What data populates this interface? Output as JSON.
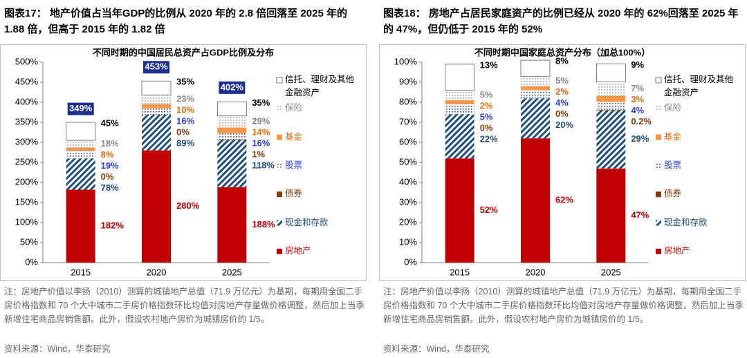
{
  "chart_data": [
    {
      "type": "stacked_bar",
      "figure_title": "图表17：  地产价值占当年GDP的比例从 2020 年的 2.8 倍回落至 2025 年的 1.88 倍，但高于 2015 年的 1.82 倍",
      "title": "不同时期的中国居民总资产占GDP比例及分布",
      "categories": [
        "2015",
        "2020",
        "2025"
      ],
      "series": [
        {
          "name": "房地产",
          "color": "#c00000",
          "pattern": "solid",
          "label_color": "#c00000",
          "values": [
            182,
            280,
            188
          ],
          "value_labels": [
            "182%",
            "280%",
            "188%"
          ]
        },
        {
          "name": "现金和存款",
          "color": "#1f4e79",
          "pattern": "hatch",
          "label_color": "#1f4e79",
          "values": [
            78,
            89,
            118
          ],
          "value_labels": [
            "78%",
            "89%",
            "118%"
          ]
        },
        {
          "name": "债券",
          "color": "#843c0c",
          "pattern": "solid",
          "label_color": "#843c0c",
          "values": [
            0,
            0,
            1
          ],
          "value_labels": [
            "0%",
            "0%",
            "1%"
          ]
        },
        {
          "name": "股票",
          "color": "#2f3fe0",
          "pattern": "dots",
          "label_color": "#2f3fe0",
          "values": [
            19,
            16,
            16
          ],
          "value_labels": [
            "19%",
            "16%",
            "16%"
          ]
        },
        {
          "name": "基金",
          "color": "#f79646",
          "pattern": "solid",
          "label_color": "#e46c0a",
          "values": [
            8,
            10,
            14
          ],
          "value_labels": [
            "8%",
            "10%",
            "14%"
          ]
        },
        {
          "name": "保险",
          "color": "#9a9a9a",
          "pattern": "dots",
          "label_color": "#8a8a8a",
          "values": [
            18,
            23,
            29
          ],
          "value_labels": [
            "18%",
            "23%",
            "29%"
          ]
        },
        {
          "name": "信托、理财及其他金融资产",
          "color": "#ffffff",
          "pattern": "solid",
          "label_color": "#000000",
          "values": [
            45,
            35,
            35
          ],
          "value_labels": [
            "45%",
            "35%",
            "35%"
          ]
        }
      ],
      "totals": [
        349,
        453,
        402
      ],
      "total_labels": [
        "349%",
        "453%",
        "402%"
      ],
      "ylim": [
        0,
        500
      ],
      "yticks": [
        {
          "value": 0,
          "label": "0%"
        },
        {
          "value": 50,
          "label": "50%"
        },
        {
          "value": 100,
          "label": "100%"
        },
        {
          "value": 150,
          "label": "150%"
        },
        {
          "value": 200,
          "label": "200%"
        },
        {
          "value": 250,
          "label": "250%"
        },
        {
          "value": 300,
          "label": "300%"
        },
        {
          "value": 350,
          "label": "350%"
        },
        {
          "value": 400,
          "label": "400%"
        },
        {
          "value": 450,
          "label": "450%"
        },
        {
          "value": 500,
          "label": "500%"
        }
      ],
      "grid": false,
      "legend": "right",
      "note": "注：房地产价值以李扬（2010）测算的城镇地产总值（71.9 万亿元）为基期，每期用全国二手房价格指数和 70 个大中城市二手房价格指数环比均值对房地产存量做价格调整，然后加上当季新增住宅商品房销售额。此外，假设农村地产房价为城镇房价的 1/5。",
      "source": "资料来源：Wind，华泰研究"
    },
    {
      "type": "stacked_bar",
      "figure_title": "图表18：  房地产占居民家庭资产的比例已经从 2020 年的 62%回落至 2025 年的 47%，但仍低于 2015 年的 52%",
      "title": "不同时期中国家庭总资产分布（加总100%）",
      "categories": [
        "2015",
        "2020",
        "2025"
      ],
      "series": [
        {
          "name": "房地产",
          "color": "#c00000",
          "pattern": "solid",
          "label_color": "#c00000",
          "values": [
            52,
            62,
            47
          ],
          "value_labels": [
            "52%",
            "62%",
            "47%"
          ]
        },
        {
          "name": "现金和存款",
          "color": "#1f4e79",
          "pattern": "hatch",
          "label_color": "#1f4e79",
          "values": [
            22,
            20,
            29
          ],
          "value_labels": [
            "22%",
            "20%",
            "29%"
          ]
        },
        {
          "name": "债券",
          "color": "#843c0c",
          "pattern": "solid",
          "label_color": "#843c0c",
          "values": [
            0,
            0,
            0.2
          ],
          "value_labels": [
            "0%",
            "0%",
            "0.2%"
          ]
        },
        {
          "name": "股票",
          "color": "#2f3fe0",
          "pattern": "dots",
          "label_color": "#2f3fe0",
          "values": [
            5,
            4,
            4
          ],
          "value_labels": [
            "5%",
            "4%",
            "4%"
          ]
        },
        {
          "name": "基金",
          "color": "#f79646",
          "pattern": "solid",
          "label_color": "#e46c0a",
          "values": [
            2,
            2,
            3
          ],
          "value_labels": [
            "2%",
            "2%",
            "3%"
          ]
        },
        {
          "name": "保险",
          "color": "#9a9a9a",
          "pattern": "dots",
          "label_color": "#8a8a8a",
          "values": [
            5,
            5,
            7
          ],
          "value_labels": [
            "5%",
            "5%",
            "7%"
          ]
        },
        {
          "name": "信托、理财及其他金融资产",
          "color": "#ffffff",
          "pattern": "solid",
          "label_color": "#000000",
          "values": [
            13,
            8,
            9
          ],
          "value_labels": [
            "13%",
            "8%",
            "9%"
          ]
        }
      ],
      "ylim": [
        0,
        100
      ],
      "yticks": [
        {
          "value": 0,
          "label": "0%"
        },
        {
          "value": 10,
          "label": "10%"
        },
        {
          "value": 20,
          "label": "20%"
        },
        {
          "value": 30,
          "label": "30%"
        },
        {
          "value": 40,
          "label": "40%"
        },
        {
          "value": 50,
          "label": "50%"
        },
        {
          "value": 60,
          "label": "60%"
        },
        {
          "value": 70,
          "label": "70%"
        },
        {
          "value": 80,
          "label": "80%"
        },
        {
          "value": 90,
          "label": "90%"
        },
        {
          "value": 100,
          "label": "100%"
        }
      ],
      "grid": false,
      "legend": "right",
      "note": "注：房地产价值以李扬（2010）测算的城镇地产总值（71.9 万亿元）为基期，每期用全国二手房价格指数和 70 个大中城市二手房价格指数环比均值对房地产存量做价格调整，然后加上当季新增住宅商品房销售额。此外，假设农村地产房价为城镇房价的 1/5。",
      "source": "资料来源：Wind，华泰研究"
    }
  ]
}
